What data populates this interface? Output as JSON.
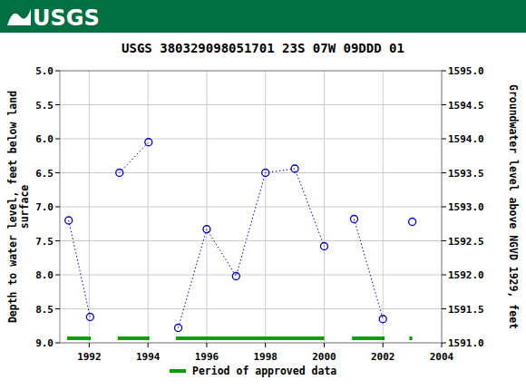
{
  "header": {
    "logo": "USGS"
  },
  "chart_data": {
    "type": "line",
    "title": "USGS 380329098051701 23S 07W 09DDD 01",
    "y_label": [
      "Depth to water level, feet below land",
      "surface"
    ],
    "y2_label": "Groundwater level above NGVD 1929, feet",
    "xlim": [
      1991,
      2004
    ],
    "xticks": [
      1992,
      1994,
      1996,
      1998,
      2000,
      2002,
      2004
    ],
    "ylim": [
      9,
      5
    ],
    "yticks": [
      {
        "value": 5,
        "label": "5.0"
      },
      {
        "value": 5.5,
        "label": "5.5"
      },
      {
        "value": 6,
        "label": "6.0"
      },
      {
        "value": 6.5,
        "label": "6.5"
      },
      {
        "value": 7,
        "label": "7.0"
      },
      {
        "value": 7.5,
        "label": "7.5"
      },
      {
        "value": 8,
        "label": "8.0"
      },
      {
        "value": 8.5,
        "label": "8.5"
      },
      {
        "value": 9,
        "label": "9.0"
      }
    ],
    "y2lim": [
      1591,
      1595
    ],
    "y2ticks": [
      {
        "value": 1591,
        "label": "1591.0"
      },
      {
        "value": 1591.5,
        "label": "1591.5"
      },
      {
        "value": 1592,
        "label": "1592.0"
      },
      {
        "value": 1592.5,
        "label": "1592.5"
      },
      {
        "value": 1593,
        "label": "1593.0"
      },
      {
        "value": 1593.5,
        "label": "1593.5"
      },
      {
        "value": 1594,
        "label": "1594.0"
      },
      {
        "value": 1594.5,
        "label": "1594.5"
      },
      {
        "value": 1595,
        "label": "1595.0"
      }
    ],
    "grid": true,
    "series": [
      {
        "type": "line",
        "color": "#0000cc",
        "marker": "circle",
        "line_style": "dotted",
        "x": [
          1991.3,
          1992.03,
          null,
          1993.03,
          1994.02,
          null,
          1995.03,
          1996.0,
          1997.0,
          1998.0,
          1999.0,
          2000.0,
          null,
          2001.02,
          2002.0,
          null,
          2003.0
        ],
        "values": [
          7.2,
          8.62,
          null,
          6.5,
          6.05,
          null,
          8.78,
          7.33,
          8.02,
          6.5,
          6.44,
          7.58,
          null,
          7.18,
          8.65,
          null,
          7.22
        ]
      },
      {
        "type": "period",
        "name": "Period of approved data",
        "color": "#00a000",
        "values": [
          [
            1991.25,
            1992.05
          ],
          [
            1992.97,
            1994.05
          ],
          [
            1994.95,
            2000.0
          ],
          [
            2000.95,
            2002.06
          ],
          [
            2002.9,
            2003.0
          ]
        ]
      }
    ]
  }
}
